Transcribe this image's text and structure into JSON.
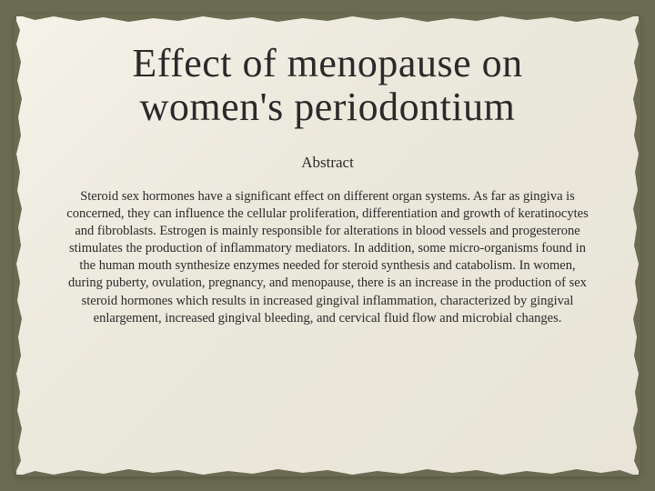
{
  "slide": {
    "title": "Effect of menopause on women's periodontium",
    "subtitle": "Abstract",
    "body": "Steroid sex hormones have a significant effect on different organ systems. As far as gingiva is concerned, they can influence the cellular proliferation, differentiation and growth of keratinocytes and fibroblasts. Estrogen is mainly responsible for alterations in blood vessels and progesterone stimulates the production of inflammatory mediators. In addition, some micro-organisms found in the human mouth synthesize enzymes needed for steroid synthesis and catabolism. In women, during puberty, ovulation, pregnancy, and menopause, there is an increase in the production of sex steroid hormones which results in increased gingival inflammation, characterized by gingival enlargement, increased gingival bleeding, and cervical fluid flow and microbial changes."
  },
  "style": {
    "background_color": "#6b6b52",
    "paper_color": "#f0ede2",
    "text_color": "#2a2a2a",
    "title_fontsize": 44,
    "subtitle_fontsize": 17,
    "body_fontsize": 14.5,
    "font_family": "Georgia, serif"
  }
}
